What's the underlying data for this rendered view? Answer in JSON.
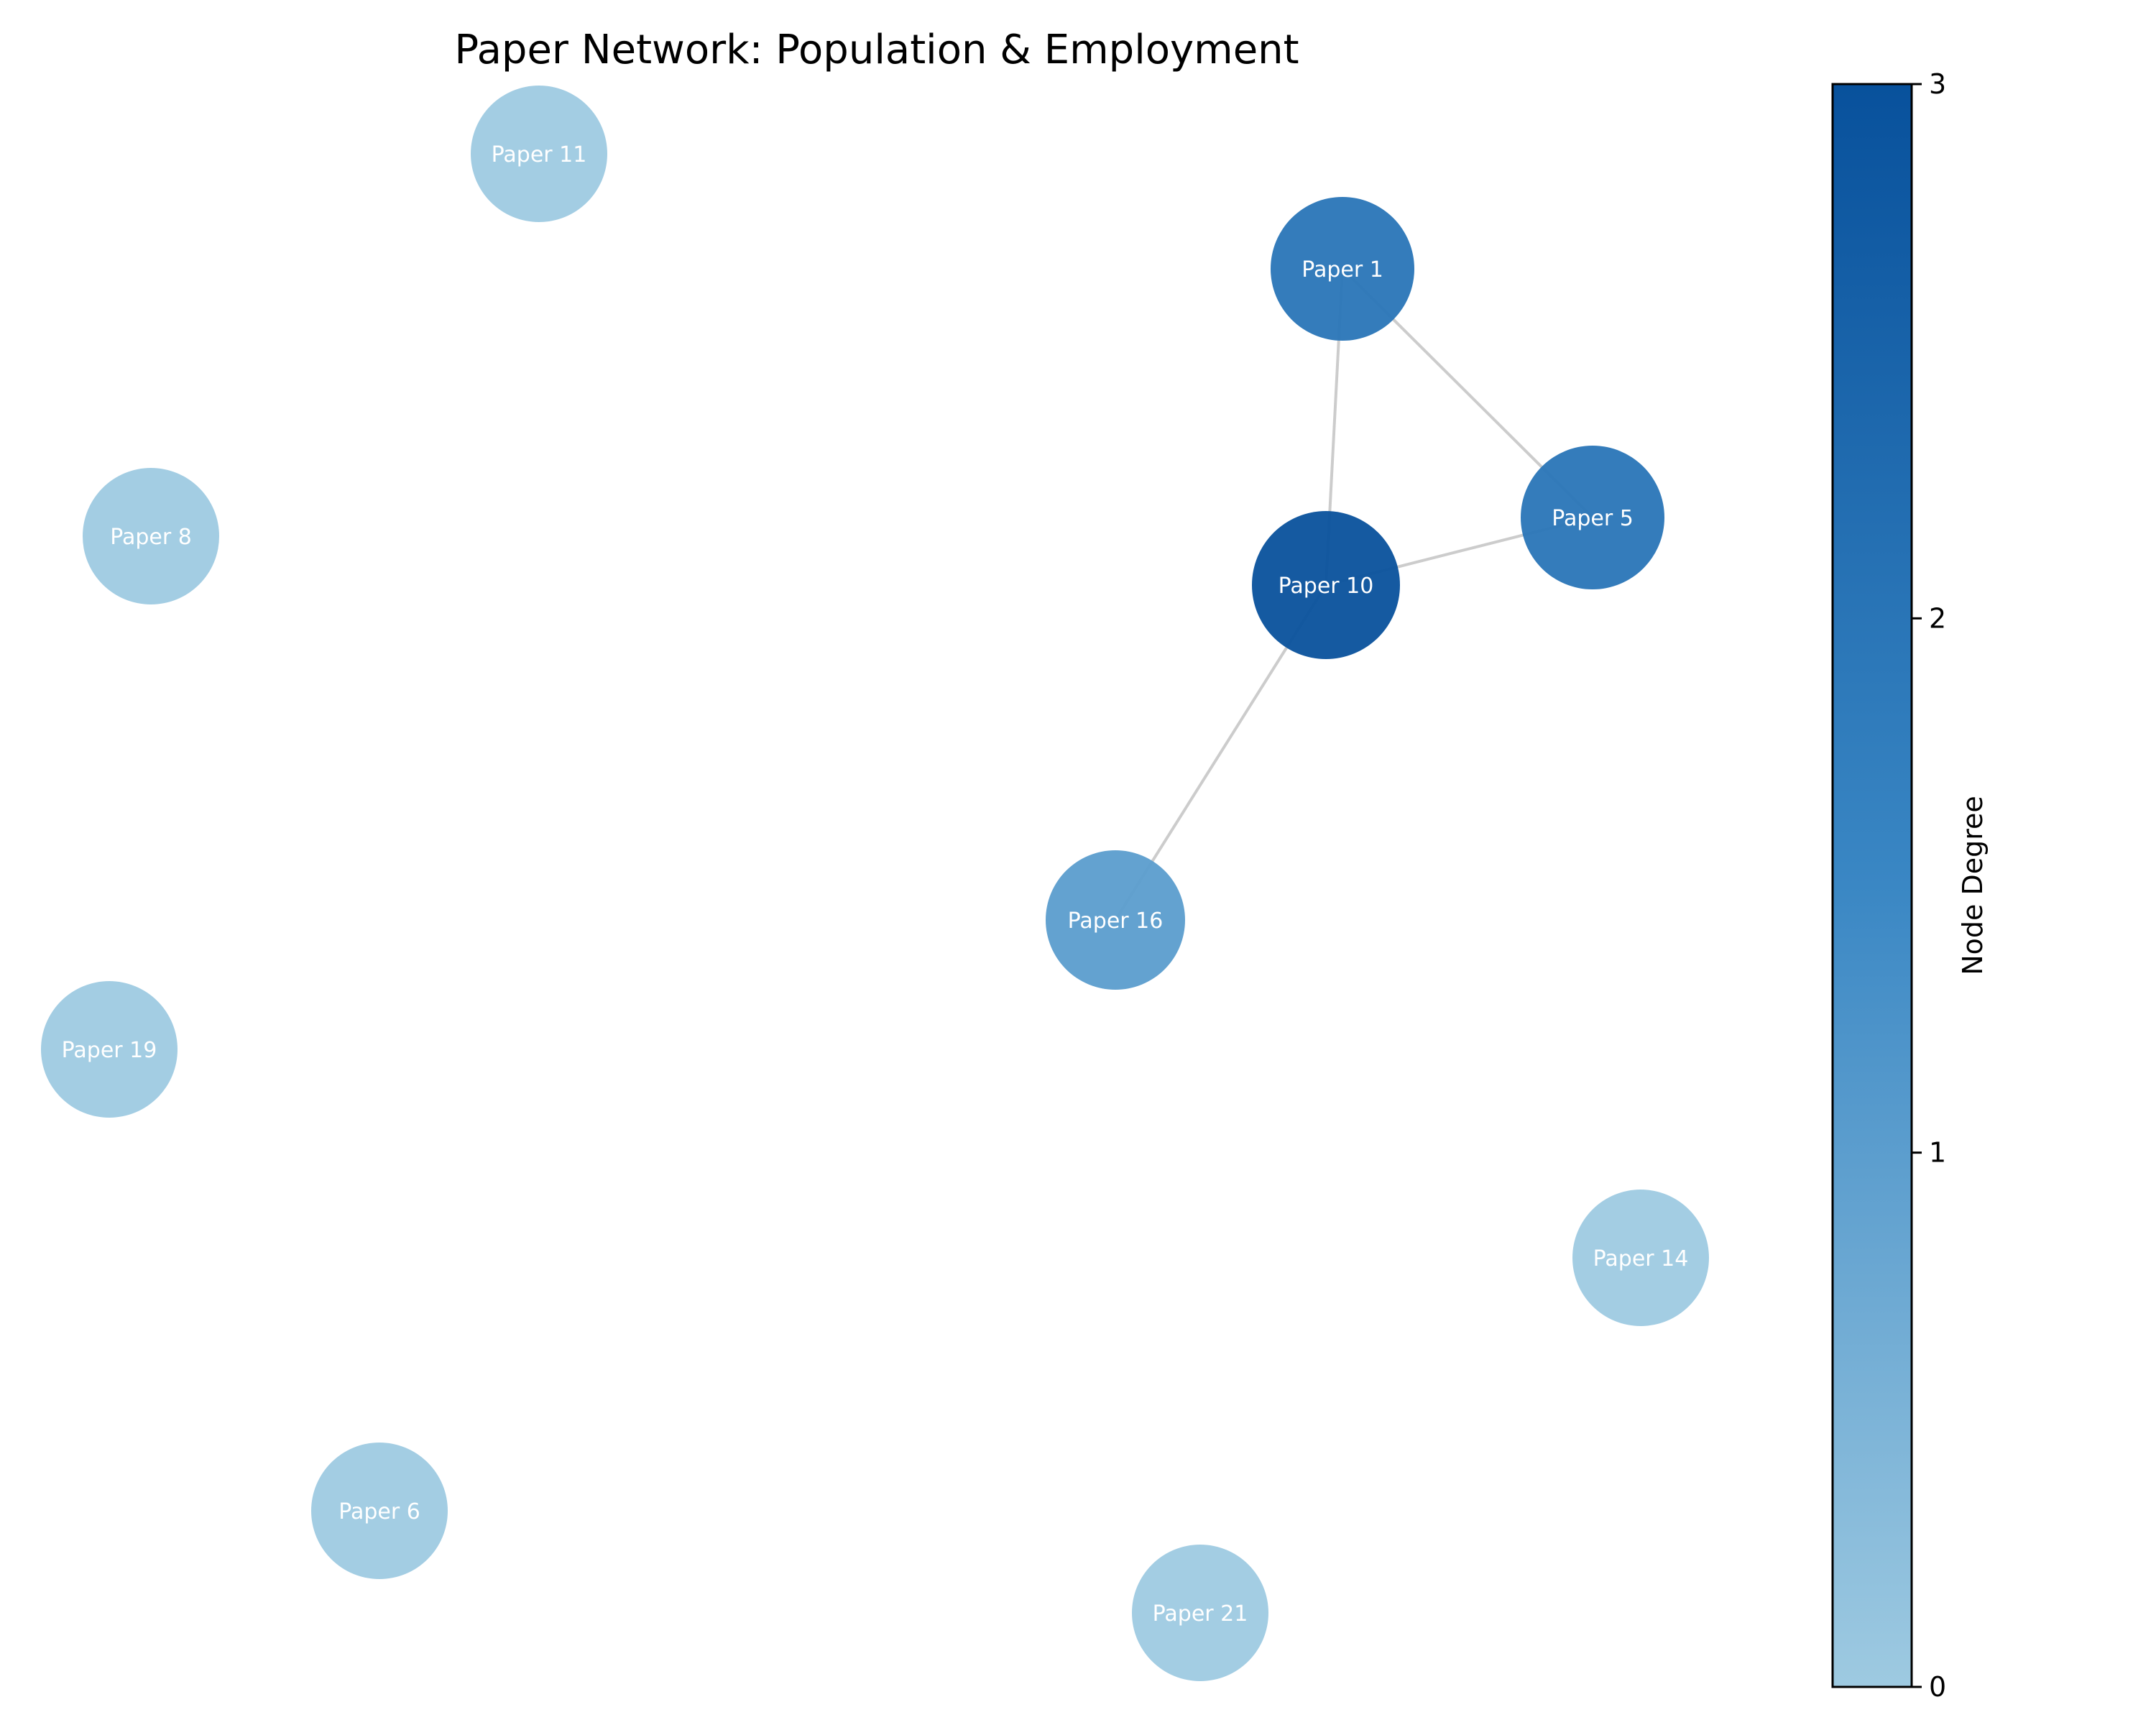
{
  "title": "Paper Network: Population & Employment",
  "colorbar": {
    "label": "Node Degree",
    "min": 0,
    "max": 3,
    "ticks": [
      "0",
      "1",
      "2",
      "3"
    ],
    "color_low": "#9ecae1",
    "color_high": "#08519c"
  },
  "nodes": [
    {
      "id": "p1",
      "label": "Paper 1",
      "degree": 2
    },
    {
      "id": "p5",
      "label": "Paper 5",
      "degree": 2
    },
    {
      "id": "p10",
      "label": "Paper 10",
      "degree": 3
    },
    {
      "id": "p16",
      "label": "Paper 16",
      "degree": 1
    },
    {
      "id": "p11",
      "label": "Paper 11",
      "degree": 0
    },
    {
      "id": "p8",
      "label": "Paper 8",
      "degree": 0
    },
    {
      "id": "p19",
      "label": "Paper 19",
      "degree": 0
    },
    {
      "id": "p14",
      "label": "Paper 14",
      "degree": 0
    },
    {
      "id": "p6",
      "label": "Paper 6",
      "degree": 0
    },
    {
      "id": "p21",
      "label": "Paper 21",
      "degree": 0
    }
  ],
  "edges": [
    {
      "source": "p1",
      "target": "p5"
    },
    {
      "source": "p1",
      "target": "p10"
    },
    {
      "source": "p10",
      "target": "p5"
    },
    {
      "source": "p10",
      "target": "p16"
    }
  ],
  "colors": {
    "edge": "#cccccc",
    "background": "#ffffff"
  }
}
